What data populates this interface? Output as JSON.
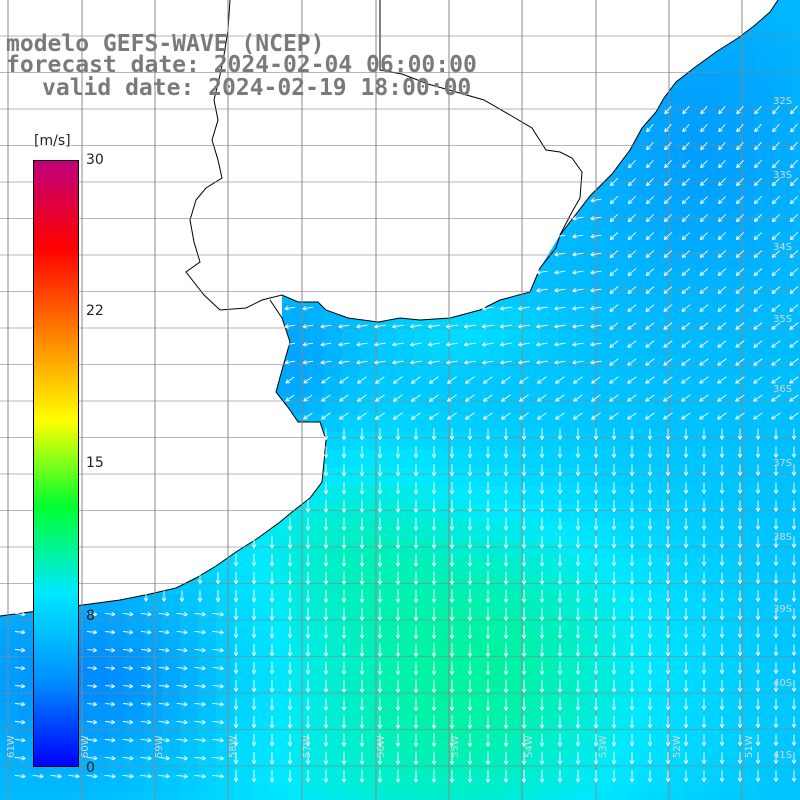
{
  "title": {
    "model": "modelo GEFS-WAVE (NCEP)",
    "forecast": "forecast date: 2024-02-04 06:00:00",
    "valid": "valid date: 2024-02-19 18:00:00"
  },
  "colorbar": {
    "unit": "[m/s]",
    "ticks": [
      "30",
      "22",
      "15",
      "8",
      "0"
    ],
    "range": [
      0,
      30
    ],
    "colors": [
      "#0000ff",
      "#0090ff",
      "#00e8ff",
      "#00ff30",
      "#ffff00",
      "#ff8000",
      "#ff0000",
      "#c0007a"
    ]
  },
  "map": {
    "lon_labels": [
      "61W",
      "60W",
      "59W",
      "58W",
      "57W",
      "56W",
      "55W",
      "54W",
      "53W",
      "52W",
      "51W"
    ],
    "lat_labels": [
      "32S",
      "33S",
      "34S",
      "35S",
      "36S",
      "37S",
      "38S",
      "39S",
      "40S",
      "41S"
    ],
    "land_color": "#ffffff",
    "coast_color": "#000000",
    "grid_color": "#888888",
    "arrow_color": "#ffffff"
  }
}
